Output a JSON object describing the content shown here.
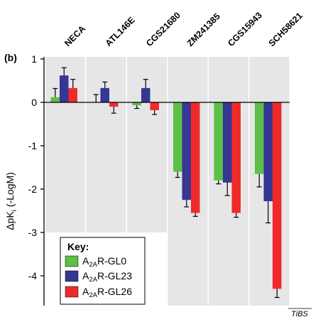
{
  "panel_label": "(b)",
  "source_label": "TiBS",
  "colors": {
    "GL0": "#5cbf48",
    "GL23": "#363693",
    "GL26": "#f02a2a",
    "panel_bg": "#e6e6e6"
  },
  "key": {
    "title": "Key:",
    "entries": [
      {
        "series": "GL0",
        "prefix": "A",
        "sub": "2A",
        "suffix": "R-GL0"
      },
      {
        "series": "GL23",
        "prefix": "A",
        "sub": "2A",
        "suffix": "R-GL23"
      },
      {
        "series": "GL26",
        "prefix": "A",
        "sub": "2A",
        "suffix": "R-GL26"
      }
    ]
  },
  "chart_data": {
    "type": "bar",
    "title": "",
    "ylabel": {
      "pre": "ΔpK",
      "sub": "i",
      "post": " (-LogM)"
    },
    "ylim": [
      -4.7,
      1.05
    ],
    "yticks": [
      {
        "value": 1,
        "label": "1"
      },
      {
        "value": 0,
        "label": "0"
      },
      {
        "value": -1,
        "label": "-1"
      },
      {
        "value": -2,
        "label": "-2"
      },
      {
        "value": -3,
        "label": "-3"
      },
      {
        "value": -4,
        "label": "-4"
      }
    ],
    "categories": [
      "NECA",
      "ATL146E",
      "CGS21680",
      "ZM241385",
      "CGS15943",
      "SCH58621"
    ],
    "category_bg_bottom": [
      -3.0,
      -3.0,
      -3.0,
      -4.7,
      -4.7,
      -4.7
    ],
    "series": [
      {
        "name": "A2AR-GL0",
        "key": "GL0",
        "values": [
          0.12,
          0.0,
          -0.07,
          -1.6,
          -1.8,
          -1.65
        ],
        "errors": [
          0.2,
          0.18,
          0.07,
          0.13,
          0.08,
          0.3
        ]
      },
      {
        "name": "A2AR-GL23",
        "key": "GL23",
        "values": [
          0.62,
          0.33,
          0.33,
          -2.25,
          -1.85,
          -2.28
        ],
        "errors": [
          0.18,
          0.14,
          0.2,
          0.16,
          0.3,
          0.5
        ]
      },
      {
        "name": "A2AR-GL26",
        "key": "GL26",
        "values": [
          0.33,
          -0.1,
          -0.18,
          -2.55,
          -2.55,
          -4.3
        ],
        "errors": [
          0.2,
          0.15,
          0.1,
          0.08,
          0.1,
          0.2
        ]
      }
    ]
  }
}
